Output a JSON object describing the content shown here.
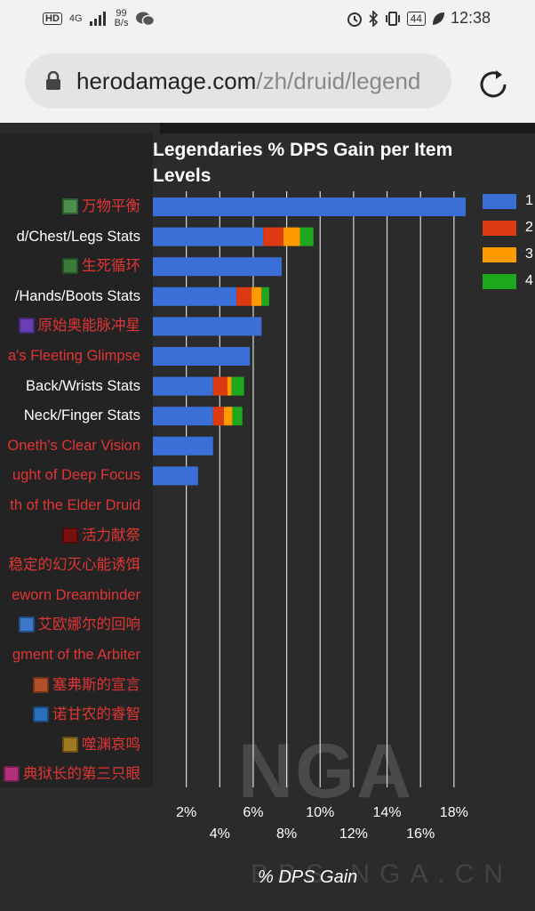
{
  "status_bar": {
    "hd": "HD",
    "net": "4G",
    "speed_value": "99",
    "speed_unit": "B/s",
    "battery": "44",
    "time": "12:38"
  },
  "browser": {
    "url_domain": "herodamage.com",
    "url_path": "/zh/druid/legend"
  },
  "watermark": {
    "logo": "NGA",
    "site": "BBS.NGA.CN"
  },
  "chart_data": {
    "type": "bar",
    "orientation": "horizontal",
    "stacked": true,
    "title": "Legendaries % DPS Gain per Item Levels",
    "xlabel": "% DPS Gain",
    "ylabel": "",
    "xlim": [
      0,
      18.7
    ],
    "xticks": [
      "2%",
      "4%",
      "6%",
      "8%",
      "10%",
      "12%",
      "14%",
      "16%",
      "18%"
    ],
    "grid": true,
    "legend_position": "right",
    "categories": [
      "万物平衡",
      "d/Chest/Legs Stats",
      "生死循环",
      "/Hands/Boots Stats",
      "原始奥能脉冲星",
      "a's Fleeting Glimpse",
      "Back/Wrists Stats",
      "Neck/Finger Stats",
      "Oneth's Clear Vision",
      "ught of Deep Focus",
      "th of the Elder Druid",
      "活力献祭",
      "稳定的幻灭心能诱饵",
      "eworn Dreambinder",
      "艾欧娜尔的回响",
      "gment of the Arbiter",
      "塞弗斯的宣言",
      "诺甘农的睿智",
      "噬渊哀鸣",
      "典狱长的第三只眼"
    ],
    "category_colors": [
      "#e03535",
      "#ffffff",
      "#e03535",
      "#ffffff",
      "#e03535",
      "#e03535",
      "#ffffff",
      "#ffffff",
      "#e03535",
      "#e03535",
      "#e03535",
      "#e03535",
      "#e03535",
      "#e03535",
      "#e03535",
      "#e03535",
      "#e03535",
      "#e03535",
      "#e03535",
      "#e03535"
    ],
    "category_icons": [
      "balance-icon",
      "",
      "cycle-icon",
      "",
      "pulsar-icon",
      "",
      "",
      "",
      "",
      "",
      "",
      "vitality-icon",
      "",
      "",
      "echo-icon",
      "",
      "sephuz-icon",
      "wisdom-icon",
      "wail-icon",
      "eye-icon"
    ],
    "series": [
      {
        "name": "1",
        "color": "#3a6fd8",
        "values": [
          18.7,
          6.6,
          7.7,
          5.0,
          6.5,
          5.8,
          3.6,
          3.6,
          3.6,
          2.7,
          0,
          0,
          0,
          0,
          0,
          0,
          0,
          0,
          0,
          0
        ]
      },
      {
        "name": "2",
        "color": "#dd3a12",
        "values": [
          0,
          1.2,
          0,
          0.9,
          0,
          0,
          0.85,
          0.65,
          0,
          0,
          0,
          0,
          0,
          0,
          0,
          0,
          0,
          0,
          0,
          0
        ]
      },
      {
        "name": "3",
        "color": "#ff9a00",
        "values": [
          0,
          1.0,
          0,
          0.6,
          0,
          0,
          0.25,
          0.5,
          0,
          0,
          0,
          0,
          0,
          0,
          0,
          0,
          0,
          0,
          0,
          0
        ]
      },
      {
        "name": "4",
        "color": "#1ea81e",
        "values": [
          0,
          0.8,
          0,
          0.45,
          0,
          0,
          0.75,
          0.6,
          0,
          0,
          0,
          0,
          0,
          0,
          0,
          0,
          0,
          0,
          0,
          0
        ]
      }
    ]
  }
}
